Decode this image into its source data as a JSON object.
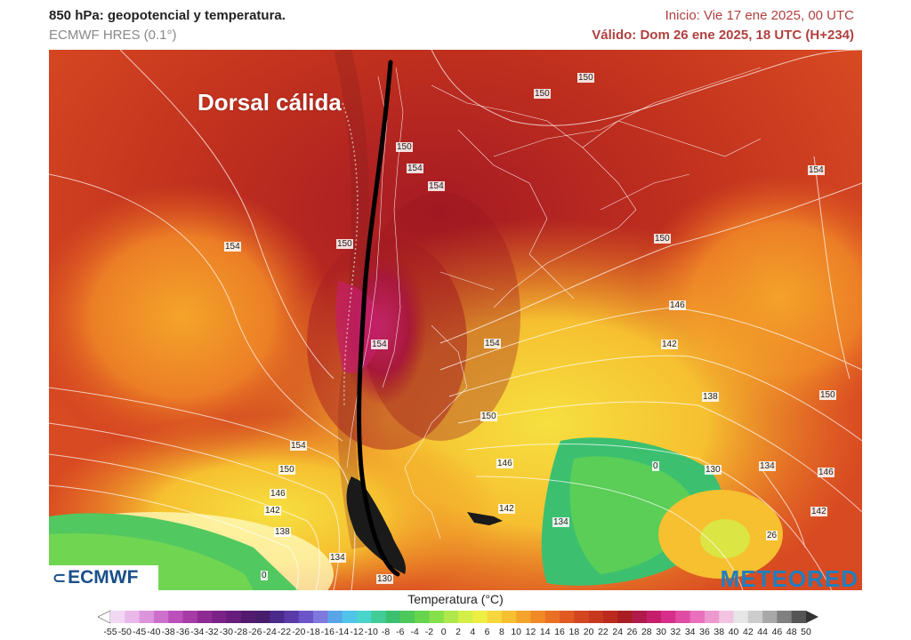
{
  "header": {
    "title": "850 hPa: geopotencial y temperatura.",
    "model": "ECMWF HRES (0.1°)",
    "init": "Inicio: Vie 17 ene 2025, 00 UTC",
    "valid": "Válido: Dom 26 ene 2025, 18 UTC (H+234)"
  },
  "map": {
    "annotation": "Dorsal cálida",
    "contour_labels": [
      "150",
      "150",
      "150",
      "154",
      "154",
      "154",
      "150",
      "150",
      "154",
      "154",
      "154",
      "150",
      "146",
      "142",
      "154",
      "138",
      "150",
      "150",
      "146",
      "130",
      "134",
      "146",
      "154",
      "150",
      "146",
      "142",
      "142",
      "134",
      "138",
      "134",
      "130",
      "142",
      "26",
      "0",
      "0"
    ]
  },
  "logos": {
    "left": "ECMWF",
    "right": "METEORED"
  },
  "legend": {
    "title": "Temperatura (°C)",
    "ticks": [
      "-55",
      "-50",
      "-45",
      "-40",
      "-38",
      "-36",
      "-34",
      "-32",
      "-30",
      "-28",
      "-26",
      "-24",
      "-22",
      "-20",
      "-18",
      "-16",
      "-14",
      "-12",
      "-10",
      "-8",
      "-6",
      "-4",
      "-2",
      "0",
      "2",
      "4",
      "6",
      "8",
      "10",
      "12",
      "14",
      "16",
      "18",
      "20",
      "22",
      "24",
      "26",
      "28",
      "30",
      "32",
      "34",
      "36",
      "38",
      "40",
      "42",
      "44",
      "46",
      "48",
      "50"
    ],
    "colors": [
      "#f2d8f2",
      "#eab8ea",
      "#dc94dc",
      "#cc70cc",
      "#bb50bb",
      "#a63aa6",
      "#8f2a94",
      "#7a2288",
      "#661d7c",
      "#541a70",
      "#471d6c",
      "#4a2a8a",
      "#5a3aa8",
      "#6b55c8",
      "#7f78dd",
      "#5aa4e8",
      "#4fc4e8",
      "#49d4cc",
      "#42cc98",
      "#3cc070",
      "#4dc85a",
      "#66d44c",
      "#86e04a",
      "#aee84a",
      "#d4ee48",
      "#eeee44",
      "#f6d83c",
      "#f6c030",
      "#f4a42a",
      "#f08a26",
      "#ea7024",
      "#e05a22",
      "#d44620",
      "#c8381e",
      "#bb2a1c",
      "#a81e22",
      "#b01a4a",
      "#c41e6a",
      "#d62e8a",
      "#e04ca4",
      "#e870bc",
      "#ee98d0",
      "#f2c4e2",
      "#e6e6e6",
      "#cccccc",
      "#a8a8a8",
      "#808080",
      "#555555"
    ]
  }
}
